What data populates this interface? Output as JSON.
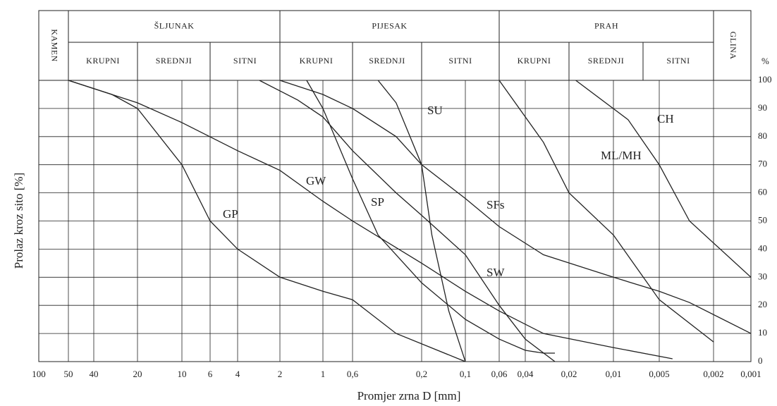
{
  "chart_data": {
    "type": "line",
    "xlabel": "Promjer zrna D [mm]",
    "ylabel": "Prolaz kroz sito [%]",
    "yunit": "%",
    "xscale": "log",
    "grid": true,
    "color": "#222",
    "xlim": [
      100,
      0.001
    ],
    "ylim": [
      0,
      100
    ],
    "xticks": [
      100,
      50,
      40,
      20,
      10,
      6,
      4,
      2,
      1,
      {
        "value": 0.6,
        "label": "0,6"
      },
      {
        "value": 0.2,
        "label": "0,2"
      },
      {
        "value": 0.1,
        "label": "0,1"
      },
      {
        "value": 0.06,
        "label": "0,06"
      },
      {
        "value": 0.04,
        "label": "0,04"
      },
      {
        "value": 0.02,
        "label": "0,02"
      },
      {
        "value": 0.01,
        "label": "0,01"
      },
      {
        "value": 0.005,
        "label": "0,005"
      },
      {
        "value": 0.002,
        "label": "0,002"
      },
      {
        "value": 0.001,
        "label": "0,001"
      }
    ],
    "yticks": [
      0,
      10,
      20,
      30,
      40,
      50,
      60,
      70,
      80,
      90,
      100
    ],
    "zones": [
      {
        "name": "KAMEN",
        "sub": []
      },
      {
        "name": "ŠLJUNAK",
        "sub": [
          "KRUPNI",
          "SREDNJI",
          "SITNI"
        ]
      },
      {
        "name": "PIJESAK",
        "sub": [
          "KRUPNI",
          "SREDNJI",
          "SITNI"
        ]
      },
      {
        "name": "PRAH",
        "sub": [
          "KRUPNI",
          "SREDNJI",
          "SITNI"
        ]
      },
      {
        "name": "GLINA",
        "sub": []
      }
    ],
    "series": [
      {
        "name": "GP",
        "x": [
          50,
          30,
          20,
          10,
          6,
          4,
          2,
          1,
          0.6,
          0.3,
          0.1
        ],
        "values": [
          100,
          95,
          90,
          70,
          50,
          40,
          30,
          25,
          22,
          10,
          0
        ]
      },
      {
        "name": "GW",
        "x": [
          50,
          20,
          10,
          4,
          2,
          1,
          0.6,
          0.2,
          0.1,
          0.06,
          0.03,
          0.01,
          0.004
        ],
        "values": [
          100,
          92,
          85,
          75,
          68,
          57,
          50,
          35,
          25,
          18,
          10,
          5,
          1
        ]
      },
      {
        "name": "SP",
        "x": [
          1.3,
          1,
          0.6,
          0.4,
          0.2,
          0.1,
          0.06,
          0.04,
          0.03,
          0.025
        ],
        "values": [
          100,
          90,
          65,
          45,
          28,
          15,
          8,
          4,
          3,
          3
        ]
      },
      {
        "name": "SU",
        "x": [
          0.4,
          0.3,
          0.2,
          0.17,
          0.13,
          0.1
        ],
        "values": [
          100,
          92,
          70,
          45,
          18,
          0
        ]
      },
      {
        "name": "SFs",
        "x": [
          2,
          1,
          0.6,
          0.3,
          0.2,
          0.1,
          0.06,
          0.03,
          0.01,
          0.005,
          0.003,
          0.001
        ],
        "values": [
          100,
          95,
          90,
          80,
          70,
          58,
          48,
          38,
          30,
          25,
          21,
          10
        ]
      },
      {
        "name": "SW",
        "x": [
          2.8,
          1.5,
          1,
          0.6,
          0.3,
          0.2,
          0.1,
          0.06,
          0.04,
          0.025
        ],
        "values": [
          100,
          93,
          87,
          75,
          60,
          52,
          38,
          20,
          8,
          0
        ]
      },
      {
        "name": "ML/MH",
        "x": [
          0.06,
          0.03,
          0.02,
          0.01,
          0.005,
          0.002
        ],
        "values": [
          100,
          78,
          60,
          45,
          22,
          7
        ]
      },
      {
        "name": "CH",
        "x": [
          0.018,
          0.008,
          0.005,
          0.003,
          0.001
        ],
        "values": [
          100,
          86,
          70,
          50,
          30
        ]
      }
    ]
  }
}
